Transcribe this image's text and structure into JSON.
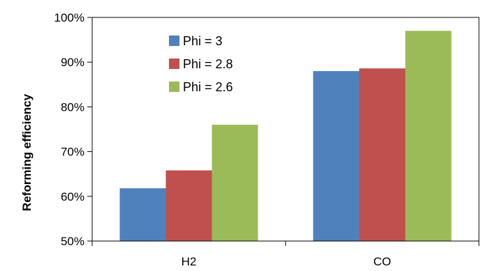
{
  "chart_data": {
    "type": "bar",
    "title": "",
    "xlabel": "",
    "ylabel": "Reforming efficiency",
    "categories": [
      "H2",
      "CO"
    ],
    "series": [
      {
        "name": "Phi = 3",
        "values": [
          61.8,
          88.0
        ],
        "color": "#4f81bd"
      },
      {
        "name": "Phi = 2.8",
        "values": [
          65.8,
          88.6
        ],
        "color": "#c0504d"
      },
      {
        "name": "Phi = 2.6",
        "values": [
          76.0,
          97.0
        ],
        "color": "#9bbb59"
      }
    ],
    "ylim": [
      50,
      100
    ],
    "yticks": [
      50,
      60,
      70,
      80,
      90,
      100
    ],
    "ytick_labels": [
      "50%",
      "60%",
      "70%",
      "80%",
      "90%",
      "100%"
    ],
    "grid": false,
    "legend": "top-left inside plot"
  }
}
